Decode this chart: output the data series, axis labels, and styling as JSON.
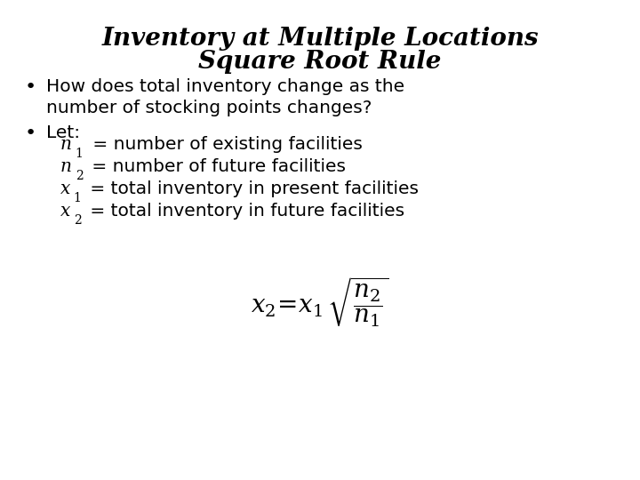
{
  "title_line1": "Inventory at Multiple Locations",
  "title_line2": "Square Root Rule",
  "bullet1_line1": "How does total inventory change as the",
  "bullet1_line2": "number of stocking points changes?",
  "bullet2": "Let:",
  "item1": " = number of existing facilities",
  "item2": " = number of future facilities",
  "item3": " = total inventory in present facilities",
  "item4": " = total inventory in future facilities",
  "background_color": "#ffffff",
  "text_color": "#000000",
  "title_fontsize": 20,
  "body_fontsize": 14.5,
  "indent_fontsize": 14.5,
  "sub_fontsize": 10,
  "bullet_fontsize": 16
}
